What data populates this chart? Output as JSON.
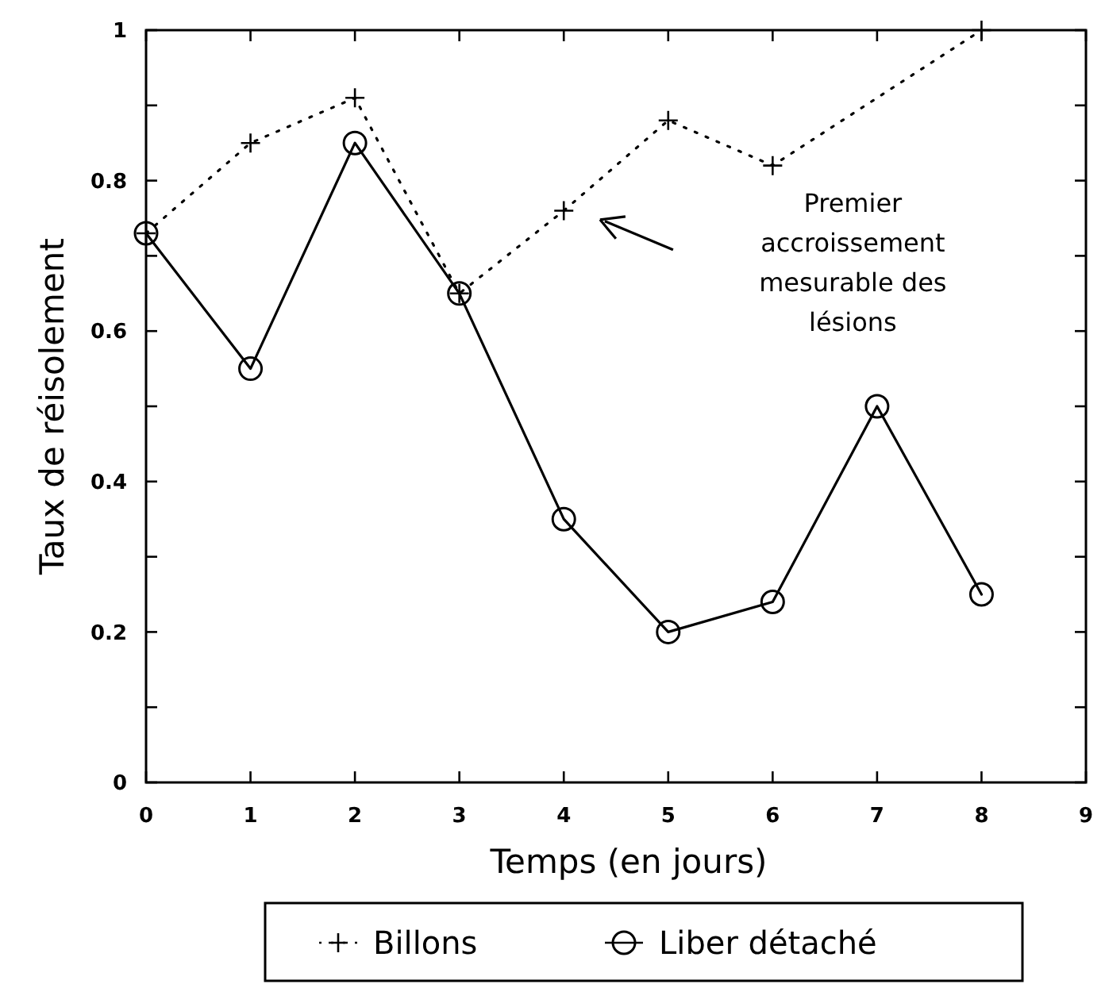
{
  "chart_data": {
    "type": "line",
    "xlabel": "Temps (en jours)",
    "ylabel": "Taux de réisolement",
    "xlim": [
      0,
      9
    ],
    "xticks": [
      0,
      1,
      2,
      3,
      4,
      5,
      6,
      7,
      8,
      9
    ],
    "ylim": [
      0,
      1
    ],
    "yticks": [
      0,
      {
        "value": 0.1,
        "label": null
      },
      0.2,
      {
        "value": 0.3,
        "label": null
      },
      0.4,
      {
        "value": 0.5,
        "label": null
      },
      0.6,
      {
        "value": 0.7,
        "label": null
      },
      0.8,
      {
        "value": 0.9,
        "label": null
      },
      1
    ],
    "x": [
      0,
      1,
      2,
      3,
      4,
      5,
      6,
      7,
      8
    ],
    "series": [
      {
        "name": "Billons",
        "color": "#000000",
        "marker": "cross",
        "line_style": "dotted",
        "x": [
          0,
          1,
          2,
          3,
          4,
          5,
          6,
          8
        ],
        "values": [
          0.73,
          0.85,
          0.91,
          0.65,
          0.76,
          0.88,
          0.82,
          1.0
        ]
      },
      {
        "name": "Liber détaché",
        "color": "#000000",
        "marker": "circle",
        "line_style": "solid",
        "values": [
          0.73,
          0.55,
          0.85,
          0.65,
          0.35,
          0.2,
          0.24,
          0.5,
          0.25
        ]
      }
    ],
    "annotations": [
      "Premier\naccroissement\nmesurable des\nlésions"
    ],
    "legend": "bottom",
    "grid": false
  }
}
